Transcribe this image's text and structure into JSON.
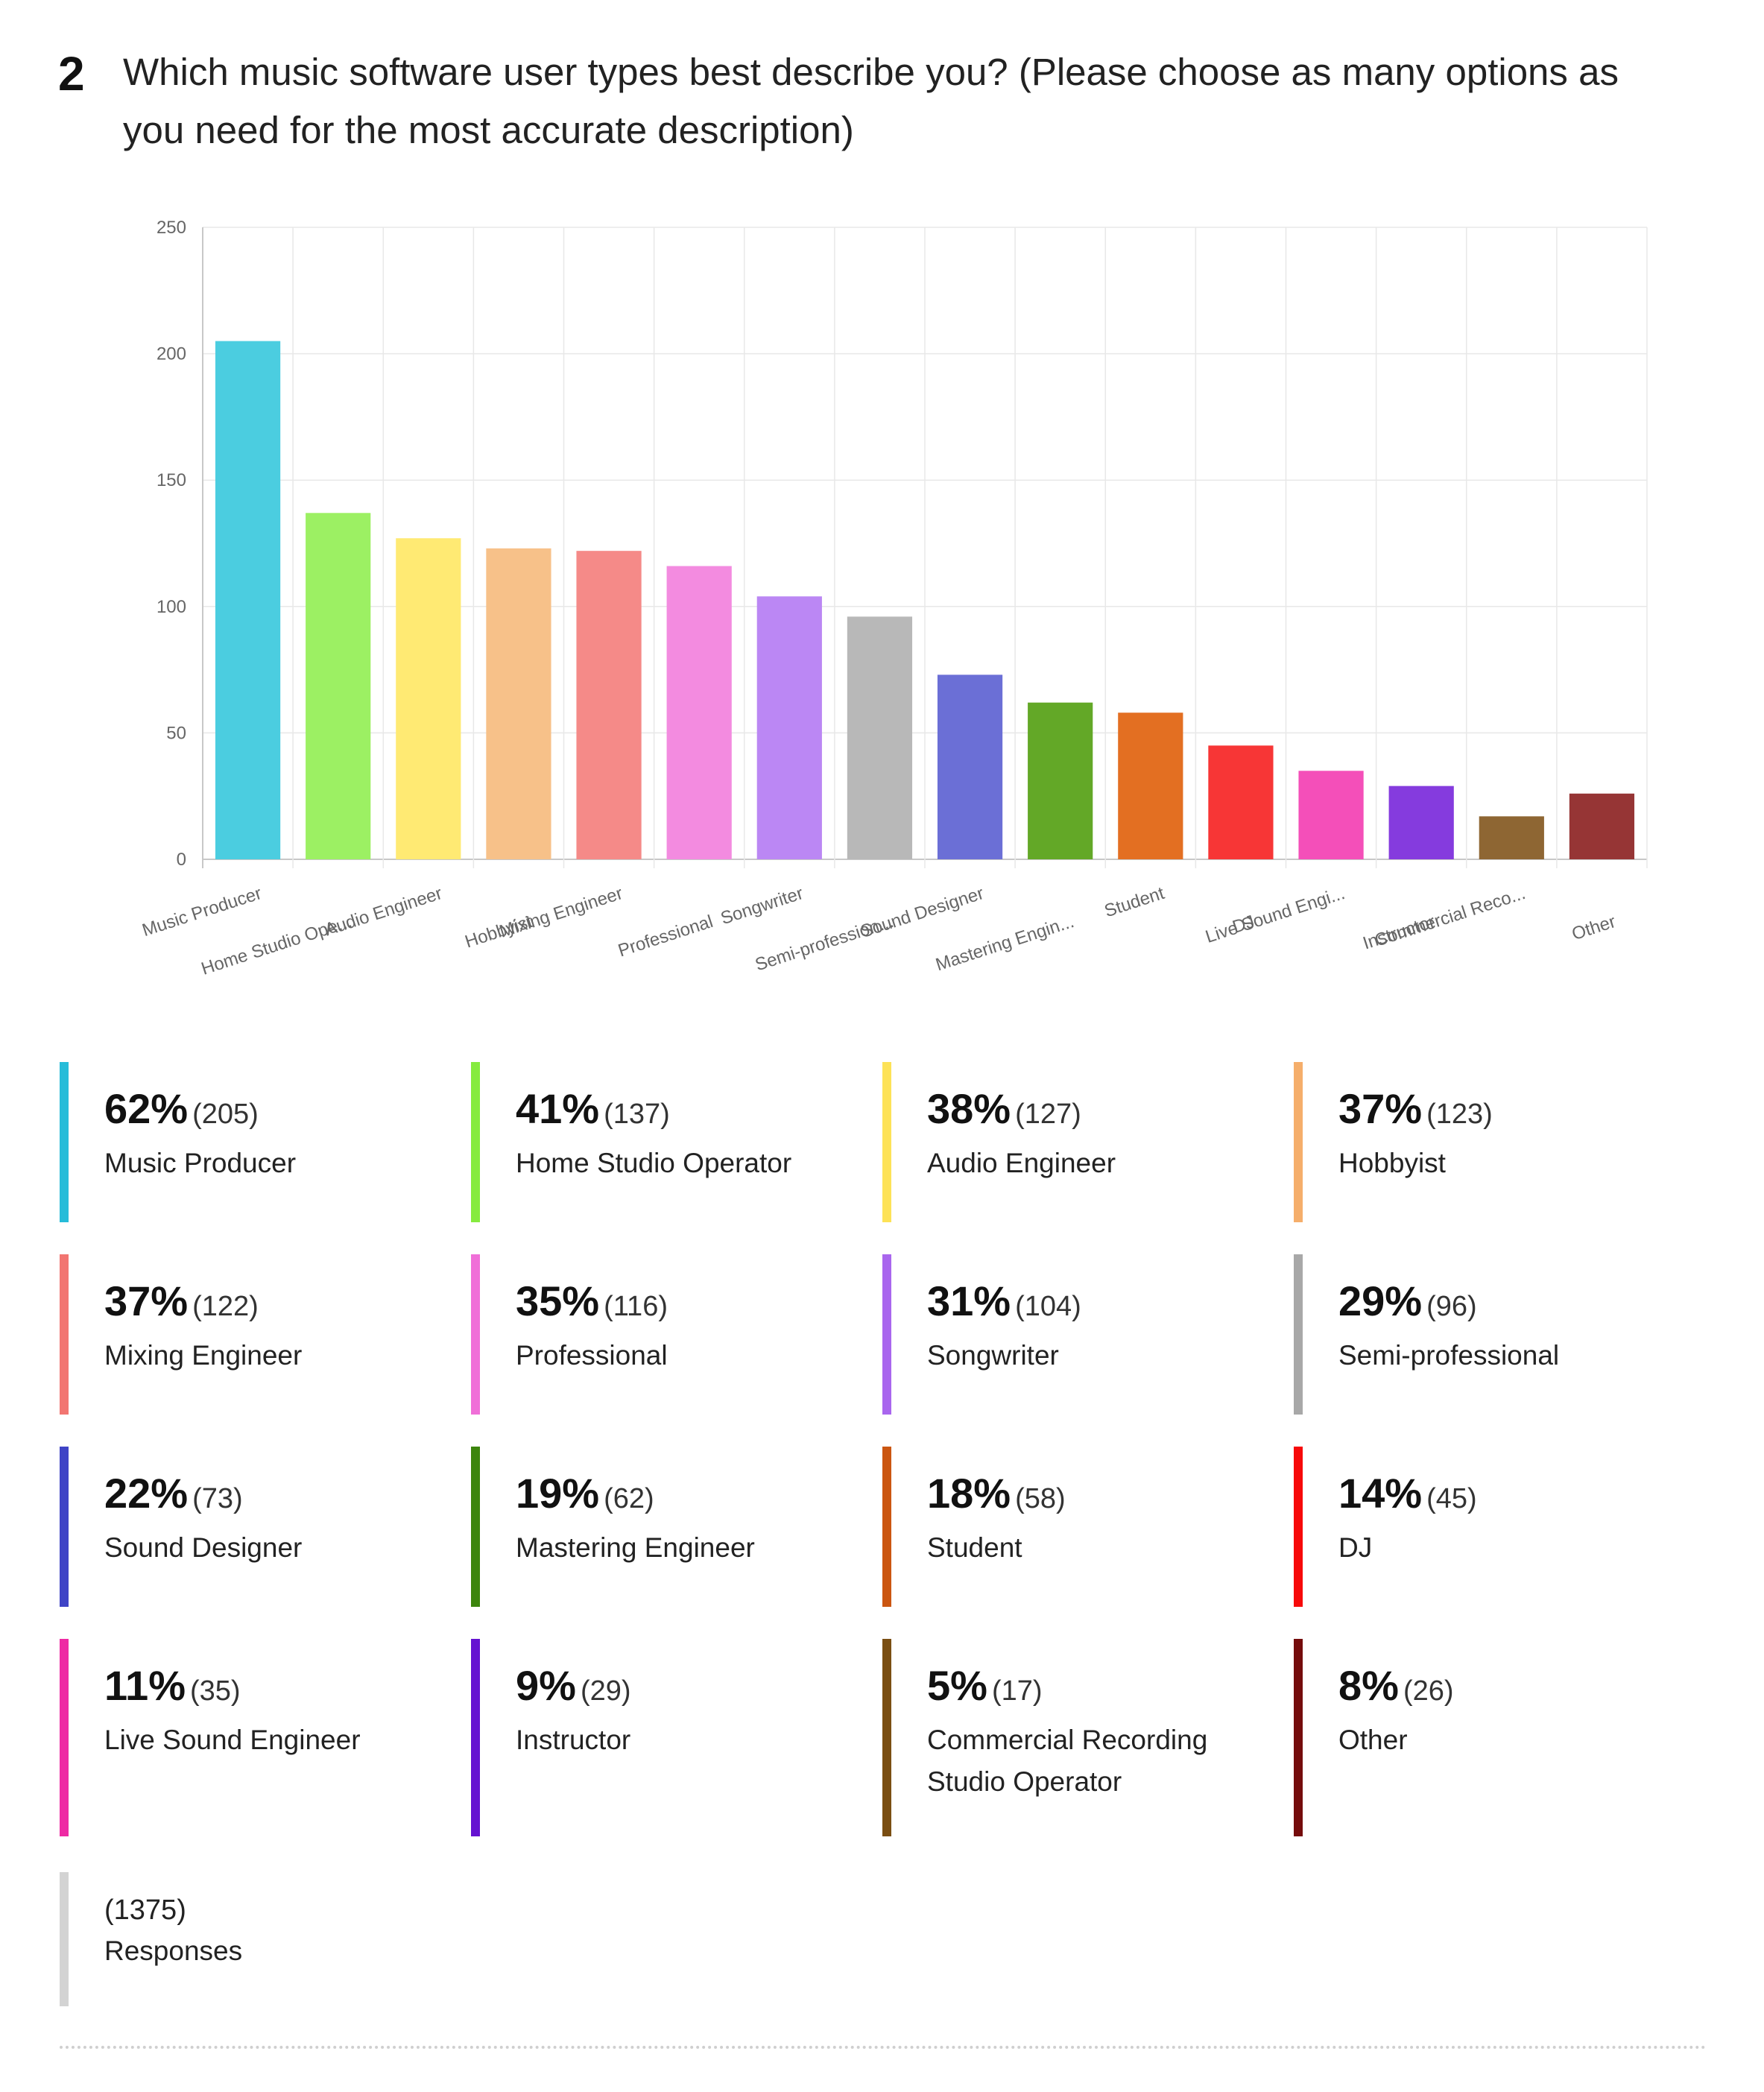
{
  "question": {
    "number": "2",
    "text": "Which music software user types best describe you? (Please choose as many options as you need for the most accurate description)"
  },
  "chart_data": {
    "type": "bar",
    "categories": [
      "Music Producer",
      "Home Studio Ope...",
      "Audio Engineer",
      "Hobbyist",
      "Mixing Engineer",
      "Professional",
      "Songwriter",
      "Semi-profession...",
      "Sound Designer",
      "Mastering Engin...",
      "Student",
      "DJ",
      "Live Sound Engi...",
      "Instructor",
      "Commercial Reco...",
      "Other"
    ],
    "values": [
      205,
      137,
      127,
      123,
      122,
      116,
      104,
      96,
      73,
      62,
      58,
      45,
      35,
      29,
      17,
      26
    ],
    "colors": [
      "#4BCDE0",
      "#9CF063",
      "#FFEA73",
      "#F7C189",
      "#F58A88",
      "#F38BE0",
      "#BB87F4",
      "#B8B8B8",
      "#6B6FD6",
      "#63A827",
      "#E36F22",
      "#F73636",
      "#F44FB9",
      "#853BDE",
      "#8E6633",
      "#963535"
    ],
    "ylim": [
      0,
      250
    ],
    "yticks": [
      0,
      50,
      100,
      150,
      200,
      250
    ],
    "grid": true,
    "xlabel": "",
    "ylabel": ""
  },
  "legend": [
    {
      "pct": "62%",
      "count": "(205)",
      "label": "Music Producer",
      "color": "#26BCD9"
    },
    {
      "pct": "41%",
      "count": "(137)",
      "label": "Home Studio Operator",
      "color": "#86EB3F"
    },
    {
      "pct": "38%",
      "count": "(127)",
      "label": "Audio Engineer",
      "color": "#FDE257"
    },
    {
      "pct": "37%",
      "count": "(123)",
      "label": "Hobbyist",
      "color": "#F5AE6B"
    },
    {
      "pct": "37%",
      "count": "(122)",
      "label": "Mixing Engineer",
      "color": "#F27571"
    },
    {
      "pct": "35%",
      "count": "(116)",
      "label": "Professional",
      "color": "#F06FD8"
    },
    {
      "pct": "31%",
      "count": "(104)",
      "label": "Songwriter",
      "color": "#A966EE"
    },
    {
      "pct": "29%",
      "count": "(96)",
      "label": "Semi-professional",
      "color": "#A8A8A8"
    },
    {
      "pct": "22%",
      "count": "(73)",
      "label": "Sound Designer",
      "color": "#3F44C6"
    },
    {
      "pct": "19%",
      "count": "(62)",
      "label": "Mastering Engineer",
      "color": "#3C850D"
    },
    {
      "pct": "18%",
      "count": "(58)",
      "label": "Student",
      "color": "#CB5611"
    },
    {
      "pct": "14%",
      "count": "(45)",
      "label": "DJ",
      "color": "#F70A0A"
    },
    {
      "pct": "11%",
      "count": "(35)",
      "label": "Live Sound Engineer",
      "color": "#EE2AA4"
    },
    {
      "pct": "9%",
      "count": "(29)",
      "label": "Instructor",
      "color": "#6512D1"
    },
    {
      "pct": "5%",
      "count": "(17)",
      "label": "Commercial Recording Studio Operator",
      "color": "#7A4E12"
    },
    {
      "pct": "8%",
      "count": "(26)",
      "label": "Other",
      "color": "#750C0C"
    }
  ],
  "responses": {
    "count": "(1375)",
    "label": "Responses"
  }
}
